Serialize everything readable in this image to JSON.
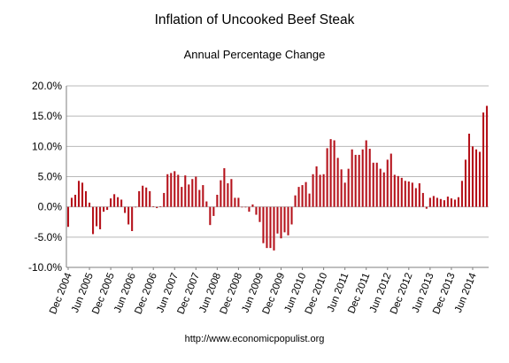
{
  "header": {
    "title": "Inflation of Uncooked Beef Steak",
    "subtitle": "Annual Percentage Change"
  },
  "footer": {
    "source": "http://www.economicpopulist.org"
  },
  "colors": {
    "bar": "#b5121b",
    "grid": "#b8b8b8",
    "axis": "#7f7f7f",
    "background": "#ffffff"
  },
  "chart_data": {
    "type": "bar",
    "title": "Inflation of Uncooked Beef Steak",
    "subtitle": "Annual Percentage Change",
    "xlabel": "",
    "ylabel": "",
    "ylim": [
      -10,
      20
    ],
    "y_ticks": [
      "-10.0%",
      "-5.0%",
      "0.0%",
      "5.0%",
      "10.0%",
      "15.0%",
      "20.0%"
    ],
    "grid": true,
    "legend": "none",
    "x_tick_labels": [
      {
        "index": 0,
        "label": "Dec 2004"
      },
      {
        "index": 6,
        "label": "Jun 2005"
      },
      {
        "index": 12,
        "label": "Dec 2005"
      },
      {
        "index": 18,
        "label": "Jun 2006"
      },
      {
        "index": 24,
        "label": "Dec 2006"
      },
      {
        "index": 30,
        "label": "Jun 2007"
      },
      {
        "index": 36,
        "label": "Dec 2007"
      },
      {
        "index": 42,
        "label": "Jun 2008"
      },
      {
        "index": 48,
        "label": "Dec 2008"
      },
      {
        "index": 54,
        "label": "Jun 2009"
      },
      {
        "index": 60,
        "label": "Dec 2009"
      },
      {
        "index": 66,
        "label": "Jun 2010"
      },
      {
        "index": 72,
        "label": "Dec 2010"
      },
      {
        "index": 78,
        "label": "Jun 2011"
      },
      {
        "index": 84,
        "label": "Dec 2011"
      },
      {
        "index": 90,
        "label": "Jun 2012"
      },
      {
        "index": 96,
        "label": "Dec 2012"
      },
      {
        "index": 102,
        "label": "Jun 2013"
      },
      {
        "index": 108,
        "label": "Dec 2013"
      },
      {
        "index": 114,
        "label": "Jun 2014"
      }
    ],
    "values": [
      -3.3,
      1.5,
      2.0,
      4.3,
      4.0,
      2.6,
      0.7,
      -4.5,
      -3.2,
      -3.7,
      -0.8,
      -0.5,
      1.4,
      2.1,
      1.6,
      1.2,
      -1.0,
      -2.9,
      -4.0,
      0.0,
      2.6,
      3.5,
      3.2,
      2.6,
      0.1,
      -0.2,
      0.1,
      2.3,
      5.4,
      5.6,
      5.9,
      5.3,
      3.3,
      5.2,
      3.7,
      4.6,
      5.0,
      2.8,
      3.6,
      0.9,
      -3.0,
      -1.5,
      2.0,
      4.4,
      6.4,
      3.9,
      4.6,
      1.5,
      1.5,
      0.0,
      0.0,
      -0.8,
      0.4,
      -1.3,
      -2.5,
      -6.0,
      -6.8,
      -6.8,
      -7.2,
      -4.4,
      -5.2,
      -4.2,
      -4.7,
      -2.9,
      1.9,
      3.3,
      3.6,
      4.1,
      2.2,
      5.4,
      6.7,
      5.3,
      5.4,
      9.7,
      11.2,
      11.0,
      8.1,
      6.2,
      4.0,
      6.3,
      9.5,
      8.6,
      8.6,
      9.5,
      11.0,
      9.6,
      7.3,
      7.3,
      6.3,
      5.7,
      7.8,
      8.8,
      5.3,
      5.1,
      4.8,
      4.3,
      4.2,
      4.0,
      3.1,
      3.9,
      2.3,
      -0.3,
      1.5,
      1.8,
      1.5,
      1.3,
      1.1,
      1.7,
      1.4,
      1.2,
      1.6,
      4.3,
      7.8,
      12.1,
      10.0,
      9.5,
      9.1,
      15.6,
      16.7
    ]
  }
}
